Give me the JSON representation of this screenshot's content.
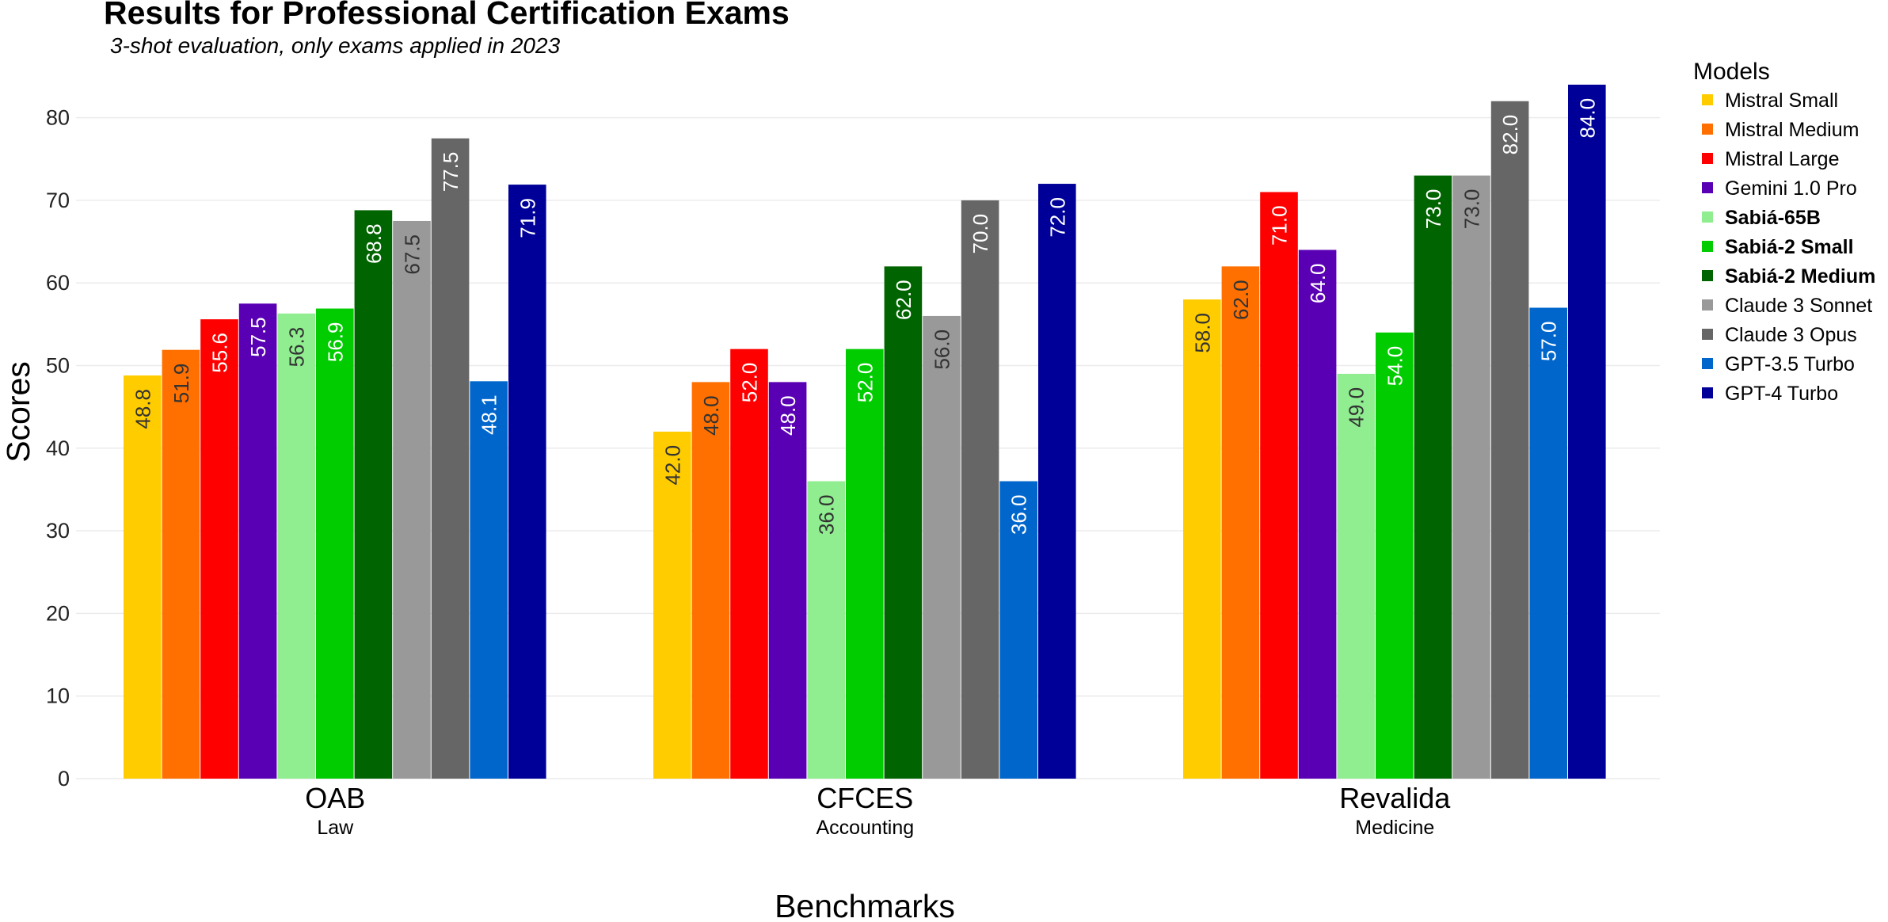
{
  "chart_data": {
    "type": "bar",
    "title": "Results for Professional Certification Exams",
    "subtitle": "3-shot evaluation, only exams applied in 2023",
    "xlabel": "Benchmarks",
    "ylabel": "Scores",
    "ylim": [
      0,
      84
    ],
    "yticks": [
      "0",
      "10",
      "20",
      "30",
      "40",
      "50",
      "60",
      "70",
      "80"
    ],
    "grid": true,
    "legend_title": "Models",
    "legend_position": "right",
    "categories": [
      "OAB",
      "CFCES",
      "Revalida"
    ],
    "category_subtitles": [
      "Law",
      "Accounting",
      "Medicine"
    ],
    "series": [
      {
        "name": "Mistral Small",
        "color": "#FFCC00",
        "label_color": "#333333",
        "bold": false,
        "values": [
          48.8,
          42.0,
          58.0
        ],
        "labels": [
          "48.8",
          "42.0",
          "58.0"
        ]
      },
      {
        "name": "Mistral Medium",
        "color": "#FF7000",
        "label_color": "#333333",
        "bold": false,
        "values": [
          51.9,
          48.0,
          62.0
        ],
        "labels": [
          "51.9",
          "48.0",
          "62.0"
        ]
      },
      {
        "name": "Mistral Large",
        "color": "#FF0000",
        "label_color": "#ffffff",
        "bold": false,
        "values": [
          55.6,
          52.0,
          71.0
        ],
        "labels": [
          "55.6",
          "52.0",
          "71.0"
        ]
      },
      {
        "name": "Gemini 1.0 Pro",
        "color": "#5A00B4",
        "label_color": "#ffffff",
        "bold": false,
        "values": [
          57.5,
          48.0,
          64.0
        ],
        "labels": [
          "57.5",
          "48.0",
          "64.0"
        ]
      },
      {
        "name": "Sabiá-65B",
        "color": "#90EE90",
        "label_color": "#333333",
        "bold": true,
        "values": [
          56.3,
          36.0,
          49.0
        ],
        "labels": [
          "56.3",
          "36.0",
          "49.0"
        ]
      },
      {
        "name": "Sabiá-2 Small",
        "color": "#00CC00",
        "label_color": "#ffffff",
        "bold": true,
        "values": [
          56.9,
          52.0,
          54.0
        ],
        "labels": [
          "56.9",
          "52.0",
          "54.0"
        ]
      },
      {
        "name": "Sabiá-2 Medium",
        "color": "#006400",
        "label_color": "#ffffff",
        "bold": true,
        "values": [
          68.8,
          62.0,
          73.0
        ],
        "labels": [
          "68.8",
          "62.0",
          "73.0"
        ]
      },
      {
        "name": "Claude 3 Sonnet",
        "color": "#999999",
        "label_color": "#333333",
        "bold": false,
        "values": [
          67.5,
          56.0,
          73.0
        ],
        "labels": [
          "67.5",
          "56.0",
          "73.0"
        ]
      },
      {
        "name": "Claude 3 Opus",
        "color": "#666666",
        "label_color": "#ffffff",
        "bold": false,
        "values": [
          77.5,
          70.0,
          82.0
        ],
        "labels": [
          "77.5",
          "70.0",
          "82.0"
        ]
      },
      {
        "name": "GPT-3.5 Turbo",
        "color": "#0066CC",
        "label_color": "#ffffff",
        "bold": false,
        "values": [
          48.1,
          36.0,
          57.0
        ],
        "labels": [
          "48.1",
          "36.0",
          "57.0"
        ]
      },
      {
        "name": "GPT-4 Turbo",
        "color": "#000099",
        "label_color": "#ffffff",
        "bold": false,
        "values": [
          71.9,
          72.0,
          84.0
        ],
        "labels": [
          "71.9",
          "72.0",
          "84.0"
        ]
      }
    ]
  }
}
